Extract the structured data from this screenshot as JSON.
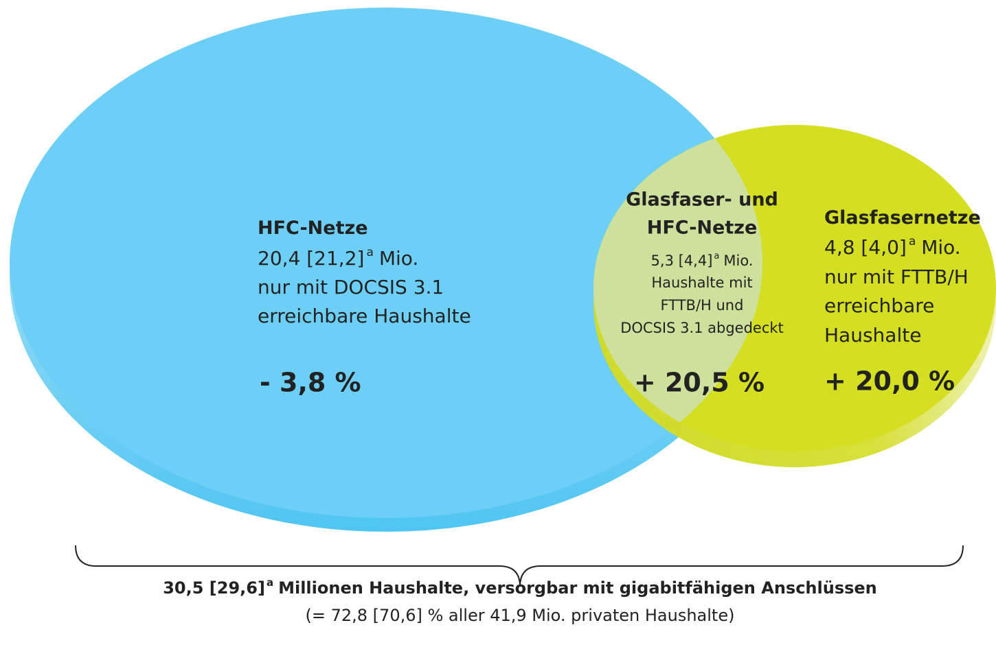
{
  "sets": [
    {
      "title": [
        "HFC-Netze"
      ],
      "value": "20,4 [21,2]",
      "note": "a",
      "unit": "Mio.",
      "lines": [
        "nur mit DOCSIS 3.1",
        "erreichbare Haushalte"
      ],
      "change": "- 3,8 %"
    },
    {
      "title": [
        "Glasfaser- und",
        "HFC-Netze"
      ],
      "value": "5,3 [4,4]",
      "note": "a",
      "unit": "Mio.",
      "lines": [
        "Haushalte mit",
        "FTTB/H und",
        "DOCSIS 3.1 abgedeckt"
      ],
      "change": "+ 20,5 %"
    },
    {
      "title": [
        "Glasfasernetze"
      ],
      "value": "4,8 [4,0]",
      "note": "a",
      "unit": "Mio.",
      "lines": [
        "nur mit FTTB/H",
        "erreichbare",
        "Haushalte"
      ],
      "change": "+ 20,0 %"
    }
  ],
  "footer": {
    "value": "30,5 [29,6]",
    "note": "a",
    "text": "Millionen Haushalte, versorgbar mit gigabitfähigen Anschlüssen",
    "subtext": "(= 72,8 [70,6] % aller 41,9 Mio. privaten Haushalte)"
  }
}
